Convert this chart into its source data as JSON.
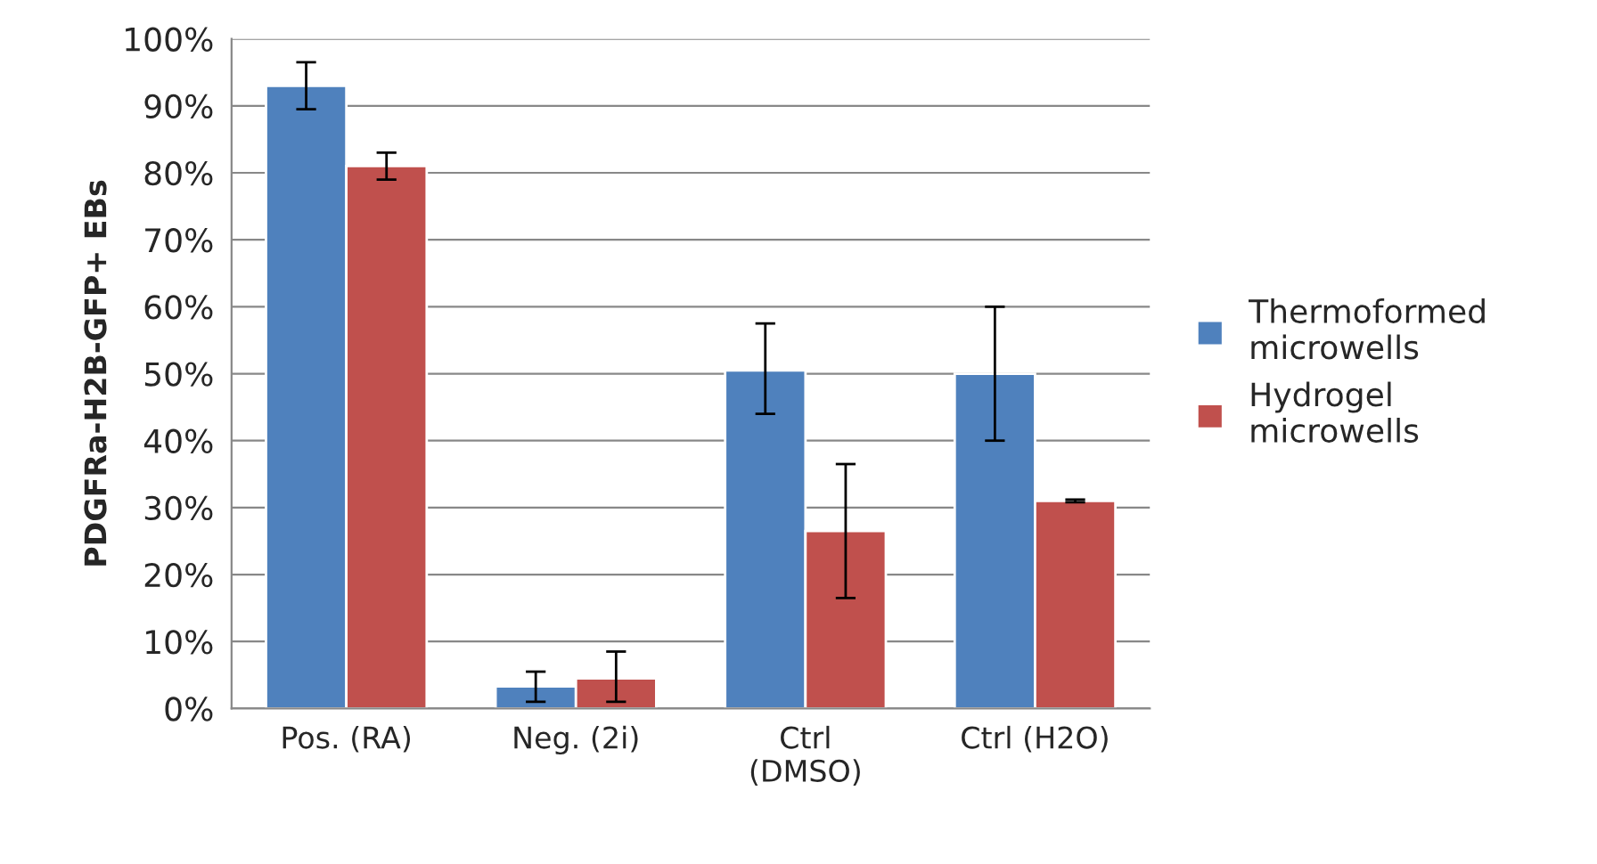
{
  "chart_data": {
    "type": "bar",
    "ylabel": "PDGFRa-H2B-GFP+ EBs",
    "categories": [
      "Pos. (RA)",
      "Neg. (2i)",
      "Ctrl\n(DMSO)",
      "Ctrl (H2O)"
    ],
    "series": [
      {
        "name": "Thermoformed\nmicrowells",
        "color": "#4f81bd",
        "values": [
          93,
          3.3,
          50.5,
          50
        ],
        "errors": [
          [
            89.5,
            96.5
          ],
          [
            1,
            5.5
          ],
          [
            44,
            57.5
          ],
          [
            40,
            60
          ]
        ]
      },
      {
        "name": "Hydrogel\nmicrowells",
        "color": "#c0504d",
        "values": [
          81,
          4.5,
          26.5,
          31
        ],
        "errors": [
          [
            79,
            83
          ],
          [
            1,
            8.5
          ],
          [
            16.5,
            36.5
          ],
          [
            30.8,
            31.2
          ]
        ]
      }
    ],
    "ylim": [
      0,
      100
    ],
    "yticks": [
      {
        "value": 0,
        "label": "0%"
      },
      {
        "value": 10,
        "label": "10%"
      },
      {
        "value": 20,
        "label": "20%"
      },
      {
        "value": 30,
        "label": "30%"
      },
      {
        "value": 40,
        "label": "40%"
      },
      {
        "value": 50,
        "label": "50%"
      },
      {
        "value": 60,
        "label": "60%"
      },
      {
        "value": 70,
        "label": "70%"
      },
      {
        "value": 80,
        "label": "80%"
      },
      {
        "value": 90,
        "label": "90%"
      },
      {
        "value": 100,
        "label": "100%"
      }
    ],
    "grid": "y",
    "legend": "right"
  }
}
